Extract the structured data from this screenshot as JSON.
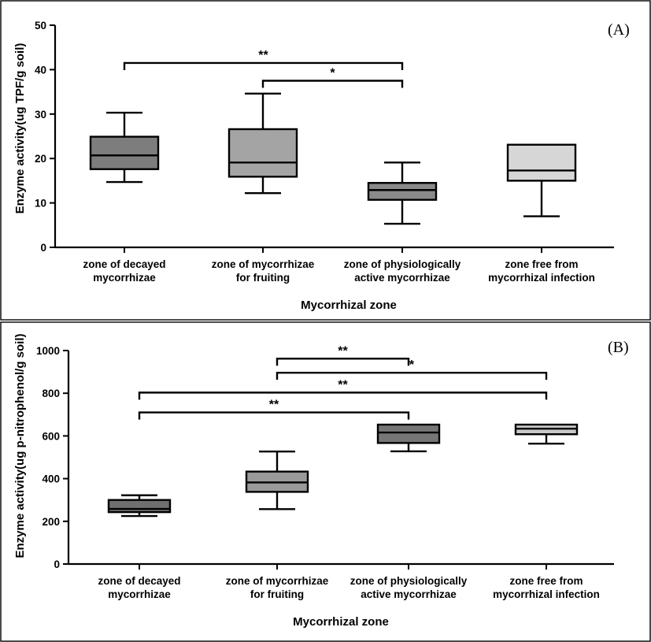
{
  "chart_data": [
    {
      "type": "box",
      "panel_label": "(A)",
      "xlabel": "Mycorrhizal zone",
      "ylabel": "Enzyme activity(ug TPF/g soil)",
      "ylim": [
        0,
        50
      ],
      "yticks": [
        "0",
        "10",
        "20",
        "30",
        "40",
        "50"
      ],
      "yticks_values": [
        0,
        10,
        20,
        30,
        40,
        50
      ],
      "categories": [
        [
          "zone of decayed",
          "mycorrhizae"
        ],
        [
          "zone of mycorrhizae",
          "for fruiting"
        ],
        [
          "zone of physiologically",
          "active mycorrhizae"
        ],
        [
          "zone free from",
          "mycorrhizal infection"
        ]
      ],
      "boxes": [
        {
          "min": 14.7,
          "q1": 17.6,
          "median": 20.7,
          "q3": 24.9,
          "max": 30.3,
          "color": "#7d7d7d"
        },
        {
          "min": 12.2,
          "q1": 15.9,
          "median": 19.1,
          "q3": 26.6,
          "max": 34.6,
          "color": "#a4a4a4"
        },
        {
          "min": 5.3,
          "q1": 10.7,
          "median": 12.9,
          "q3": 14.5,
          "max": 19.1,
          "color": "#8a8a8a"
        },
        {
          "min": 7.0,
          "q1": 15.0,
          "median": 17.3,
          "q3": 23.1,
          "max": 23.1,
          "color": "#d6d6d6"
        }
      ],
      "significance": [
        {
          "from": 0,
          "to": 2,
          "y": 41.5,
          "label": "**"
        },
        {
          "from": 1,
          "to": 2,
          "y": 37.5,
          "label": "*"
        }
      ]
    },
    {
      "type": "box",
      "panel_label": "(B)",
      "xlabel": "Mycorrhizal zone",
      "ylabel": "Enzyme activity(ug p-nitrophenol/g soil)",
      "ylim": [
        0,
        1000
      ],
      "yticks": [
        "0",
        "200",
        "400",
        "600",
        "800",
        "1000"
      ],
      "yticks_values": [
        0,
        200,
        400,
        600,
        800,
        1000
      ],
      "categories": [
        [
          "zone of decayed",
          "mycorrhizae"
        ],
        [
          "zone of mycorrhizae",
          "for fruiting"
        ],
        [
          "zone of physiologically",
          "active mycorrhizae"
        ],
        [
          "zone free from",
          "mycorrhizal infection"
        ]
      ],
      "boxes": [
        {
          "min": 225,
          "q1": 243,
          "median": 258,
          "q3": 300,
          "max": 322,
          "color": "#6f6f6f"
        },
        {
          "min": 257,
          "q1": 338,
          "median": 382,
          "q3": 433,
          "max": 527,
          "color": "#9a9a9a"
        },
        {
          "min": 528,
          "q1": 567,
          "median": 616,
          "q3": 653,
          "max": 653,
          "color": "#767676"
        },
        {
          "min": 564,
          "q1": 608,
          "median": 634,
          "q3": 653,
          "max": 653,
          "color": "#c9c9c9"
        }
      ],
      "significance": [
        {
          "from": 1,
          "to": 2,
          "y": 962,
          "label": "**"
        },
        {
          "from": 1,
          "to": 3,
          "y": 896,
          "label": "*"
        },
        {
          "from": 0,
          "to": 3,
          "y": 803,
          "label": "**"
        },
        {
          "from": 0,
          "to": 2,
          "y": 710,
          "label": "**"
        }
      ]
    }
  ]
}
